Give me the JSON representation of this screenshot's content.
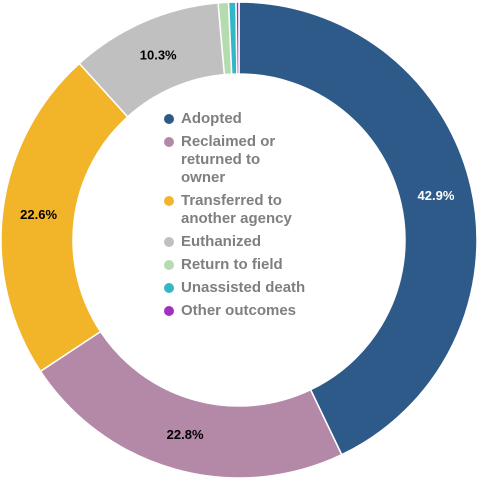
{
  "chart_data": {
    "type": "pie",
    "style": "donut",
    "start_angle": "12 o'clock, clockwise",
    "legend_position": "center",
    "slices": [
      {
        "name": "Adopted",
        "value": 42.9,
        "label": "42.9%",
        "color": "#2e5a8a",
        "label_color": "#ffffff"
      },
      {
        "name": "Reclaimed or\nreturned to\nowner",
        "value": 22.8,
        "label": "22.8%",
        "color": "#b488a7",
        "label_color": "#000000"
      },
      {
        "name": "Transferred to\nanother agency",
        "value": 22.6,
        "label": "22.6%",
        "color": "#f2b52a",
        "label_color": "#000000"
      },
      {
        "name": "Euthanized",
        "value": 10.3,
        "label": "10.3%",
        "color": "#c0c0c0",
        "label_color": "#000000"
      },
      {
        "name": "Return to field",
        "value": 0.7,
        "label": "",
        "color": "#b5dcae",
        "label_color": "#000000"
      },
      {
        "name": "Unassisted death",
        "value": 0.5,
        "label": "",
        "color": "#35b6c6",
        "label_color": "#000000"
      },
      {
        "name": "Other outcomes",
        "value": 0.2,
        "label": "",
        "color": "#a030c0",
        "label_color": "#000000"
      }
    ]
  }
}
